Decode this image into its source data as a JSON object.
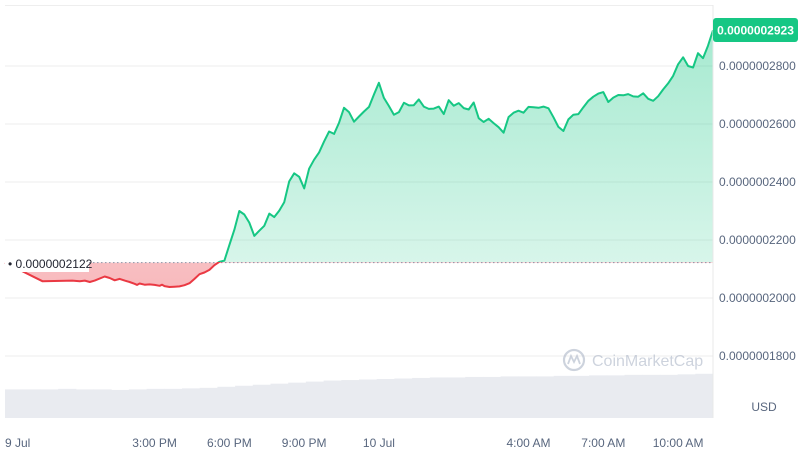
{
  "watermark": {
    "text": "CoinMarketCap"
  },
  "chart_data": {
    "type": "area",
    "currency_label": "USD",
    "baseline": {
      "value": 2.122e-07,
      "label": "0.0000002122"
    },
    "current_price": {
      "value": 2.923e-07,
      "label": "0.0000002923"
    },
    "colors": {
      "up": "#16c784",
      "down": "#ea3943",
      "up_fill": "#16c784",
      "down_fill": "#ea3943",
      "grid": "#eeeeee",
      "text": "#58667e",
      "volume": "#e9ebf0"
    },
    "ylim": [
      1.7e-07,
      2.98e-07
    ],
    "y_ticks": [
      {
        "value": 2.8e-07,
        "label": "0.0000002800"
      },
      {
        "value": 2.6e-07,
        "label": "0.0000002600"
      },
      {
        "value": 2.4e-07,
        "label": "0.0000002400"
      },
      {
        "value": 2.2e-07,
        "label": "0.0000002200"
      },
      {
        "value": 2e-07,
        "label": "0.0000002000"
      },
      {
        "value": 1.8e-07,
        "label": "0.0000001800"
      }
    ],
    "x_ticks": [
      {
        "t": 0,
        "label": "9 Jul"
      },
      {
        "t": 30,
        "label": "3:00 PM"
      },
      {
        "t": 45,
        "label": "6:00 PM"
      },
      {
        "t": 60,
        "label": "9:00 PM"
      },
      {
        "t": 75,
        "label": "10 Jul"
      },
      {
        "t": 105,
        "label": "4:00 AM"
      },
      {
        "t": 120,
        "label": "7:00 AM"
      },
      {
        "t": 135,
        "label": "10:00 AM"
      }
    ],
    "x_range": [
      0,
      142
    ],
    "series": [
      {
        "values": [
          [
            0,
            2.122e-07
          ],
          [
            7.5,
            2.058e-07
          ],
          [
            13.5,
            2.06e-07
          ],
          [
            15,
            2.058e-07
          ],
          [
            16,
            2.06e-07
          ],
          [
            17,
            2.055e-07
          ],
          [
            18,
            2.06e-07
          ],
          [
            20,
            2.074e-07
          ],
          [
            21,
            2.069e-07
          ],
          [
            22,
            2.061e-07
          ],
          [
            23,
            2.066e-07
          ],
          [
            24,
            2.06e-07
          ],
          [
            25,
            2.055e-07
          ],
          [
            26,
            2.049e-07
          ],
          [
            26.5,
            2.045e-07
          ],
          [
            27,
            2.05e-07
          ],
          [
            28,
            2.046e-07
          ],
          [
            29,
            2.047e-07
          ],
          [
            30,
            2.045e-07
          ],
          [
            31,
            2.042e-07
          ],
          [
            31.5,
            2.046e-07
          ],
          [
            32,
            2.041e-07
          ],
          [
            33,
            2.038e-07
          ],
          [
            34,
            2.039e-07
          ],
          [
            35,
            2.04e-07
          ],
          [
            36,
            2.044e-07
          ],
          [
            37,
            2.051e-07
          ],
          [
            38,
            2.066e-07
          ],
          [
            39,
            2.082e-07
          ],
          [
            40,
            2.088e-07
          ],
          [
            41,
            2.097e-07
          ],
          [
            42,
            2.113e-07
          ],
          [
            43,
            2.125e-07
          ],
          [
            44,
            2.129e-07
          ],
          [
            45,
            2.183e-07
          ],
          [
            46,
            2.236e-07
          ],
          [
            47,
            2.3e-07
          ],
          [
            48,
            2.288e-07
          ],
          [
            49,
            2.26e-07
          ],
          [
            50,
            2.214e-07
          ],
          [
            51,
            2.232e-07
          ],
          [
            52,
            2.249e-07
          ],
          [
            53,
            2.291e-07
          ],
          [
            54,
            2.279e-07
          ],
          [
            55,
            2.301e-07
          ],
          [
            56,
            2.33e-07
          ],
          [
            57,
            2.402e-07
          ],
          [
            58,
            2.43e-07
          ],
          [
            59,
            2.418e-07
          ],
          [
            60,
            2.378e-07
          ],
          [
            61,
            2.446e-07
          ],
          [
            62,
            2.477e-07
          ],
          [
            63,
            2.502e-07
          ],
          [
            64,
            2.54e-07
          ],
          [
            65,
            2.574e-07
          ],
          [
            66,
            2.566e-07
          ],
          [
            67,
            2.605e-07
          ],
          [
            68,
            2.656e-07
          ],
          [
            69,
            2.641e-07
          ],
          [
            70,
            2.608e-07
          ],
          [
            71,
            2.626e-07
          ],
          [
            72,
            2.643e-07
          ],
          [
            73,
            2.659e-07
          ],
          [
            74,
            2.702e-07
          ],
          [
            75,
            2.742e-07
          ],
          [
            76,
            2.69e-07
          ],
          [
            77,
            2.662e-07
          ],
          [
            78,
            2.632e-07
          ],
          [
            79,
            2.641e-07
          ],
          [
            80,
            2.673e-07
          ],
          [
            81,
            2.664e-07
          ],
          [
            82,
            2.665e-07
          ],
          [
            83,
            2.685e-07
          ],
          [
            84,
            2.66e-07
          ],
          [
            85,
            2.652e-07
          ],
          [
            86,
            2.653e-07
          ],
          [
            87,
            2.66e-07
          ],
          [
            88,
            2.634e-07
          ],
          [
            89,
            2.682e-07
          ],
          [
            90,
            2.663e-07
          ],
          [
            91,
            2.672e-07
          ],
          [
            92,
            2.655e-07
          ],
          [
            93,
            2.65e-07
          ],
          [
            94,
            2.674e-07
          ],
          [
            95,
            2.62e-07
          ],
          [
            96,
            2.607e-07
          ],
          [
            97,
            2.618e-07
          ],
          [
            98,
            2.603e-07
          ],
          [
            99,
            2.589e-07
          ],
          [
            100,
            2.57e-07
          ],
          [
            101,
            2.624e-07
          ],
          [
            102,
            2.639e-07
          ],
          [
            103,
            2.646e-07
          ],
          [
            104,
            2.639e-07
          ],
          [
            105,
            2.659e-07
          ],
          [
            106,
            2.658e-07
          ],
          [
            107,
            2.656e-07
          ],
          [
            108,
            2.66e-07
          ],
          [
            109,
            2.654e-07
          ],
          [
            110,
            2.623e-07
          ],
          [
            111,
            2.59e-07
          ],
          [
            112,
            2.576e-07
          ],
          [
            113,
            2.616e-07
          ],
          [
            114,
            2.632e-07
          ],
          [
            115,
            2.634e-07
          ],
          [
            116,
            2.658e-07
          ],
          [
            117,
            2.68e-07
          ],
          [
            118,
            2.694e-07
          ],
          [
            119,
            2.705e-07
          ],
          [
            120,
            2.71e-07
          ],
          [
            121,
            2.676e-07
          ],
          [
            122,
            2.691e-07
          ],
          [
            123,
            2.7e-07
          ],
          [
            124,
            2.699e-07
          ],
          [
            125,
            2.703e-07
          ],
          [
            126,
            2.695e-07
          ],
          [
            127,
            2.694e-07
          ],
          [
            128,
            2.706e-07
          ],
          [
            129,
            2.687e-07
          ],
          [
            130,
            2.68e-07
          ],
          [
            131,
            2.696e-07
          ],
          [
            132,
            2.719e-07
          ],
          [
            133,
            2.74e-07
          ],
          [
            134,
            2.766e-07
          ],
          [
            135,
            2.806e-07
          ],
          [
            136,
            2.83e-07
          ],
          [
            137,
            2.8e-07
          ],
          [
            138,
            2.795e-07
          ],
          [
            139,
            2.844e-07
          ],
          [
            140,
            2.827e-07
          ],
          [
            141,
            2.87e-07
          ],
          [
            142,
            2.923e-07
          ]
        ]
      }
    ],
    "volume_relative": [
      0.55,
      0.55,
      0.55,
      0.56,
      0.55,
      0.55,
      0.54,
      0.55,
      0.56,
      0.56,
      0.57,
      0.58,
      0.6,
      0.62,
      0.64,
      0.66,
      0.68,
      0.7,
      0.72,
      0.73,
      0.74,
      0.75,
      0.76,
      0.77,
      0.78,
      0.78,
      0.79,
      0.79,
      0.8,
      0.8,
      0.8,
      0.81,
      0.81,
      0.82,
      0.82,
      0.83,
      0.83,
      0.83,
      0.84,
      0.85
    ]
  }
}
